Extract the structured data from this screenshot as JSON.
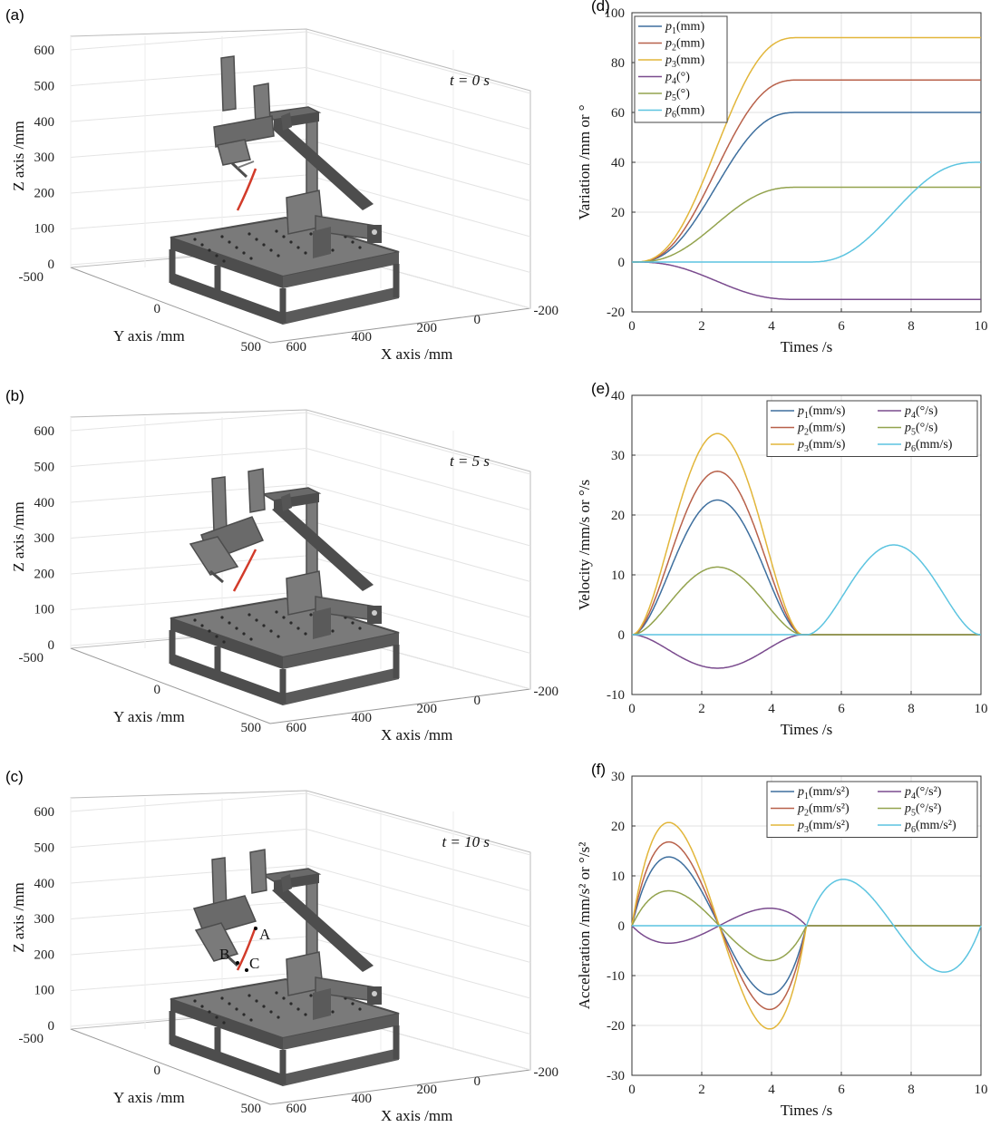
{
  "panels": [
    {
      "label": "(a)",
      "annotation": "t = 0 s"
    },
    {
      "label": "(b)",
      "annotation": "t = 5 s"
    },
    {
      "label": "(c)",
      "annotation": "t = 10 s",
      "points": [
        "A",
        "B",
        "C"
      ]
    }
  ],
  "axes3d": {
    "zlabel": "Z axis /mm",
    "ylabel": "Y axis /mm",
    "xlabel": "X axis /mm",
    "zticks": [
      "0",
      "100",
      "200",
      "300",
      "400",
      "500",
      "600"
    ],
    "yticks": [
      "-500",
      "0",
      "500"
    ],
    "xticks": [
      "600",
      "400",
      "200",
      "0",
      "-200"
    ]
  },
  "colors": {
    "p1": "#3e6f9e",
    "p2": "#b8614a",
    "p3": "#e2b63a",
    "p4": "#7a4b8e",
    "p5": "#93a34e",
    "p6": "#5cc4e0",
    "trajectory": "#d23b2a",
    "robot": "#4d4d4d",
    "robot_light": "#7a7a7a"
  },
  "chart_data": [
    {
      "label": "(d)",
      "type": "line",
      "xlabel": "Times /s",
      "ylabel": "Variation /mm or °",
      "xlim": [
        0,
        10
      ],
      "ylim": [
        -20,
        100
      ],
      "xticks": [
        0,
        2,
        4,
        6,
        8,
        10
      ],
      "yticks": [
        -20,
        0,
        20,
        40,
        60,
        80,
        100
      ],
      "legend_placement": "top-left",
      "legend_columns": 1,
      "grid": true,
      "series": [
        {
          "name": "p",
          "sub": "1",
          "unit": "(mm)",
          "color": "p1",
          "segments": [
            [
              0,
              4.8,
              0,
              60
            ]
          ]
        },
        {
          "name": "p",
          "sub": "2",
          "unit": "(mm)",
          "color": "p2",
          "segments": [
            [
              0,
              4.8,
              0,
              73
            ]
          ]
        },
        {
          "name": "p",
          "sub": "3",
          "unit": "(mm)",
          "color": "p3",
          "segments": [
            [
              0,
              4.8,
              0,
              90
            ]
          ]
        },
        {
          "name": "p",
          "sub": "4",
          "unit": "(°)",
          "color": "p4",
          "segments": [
            [
              0,
              4.8,
              0,
              -15
            ]
          ]
        },
        {
          "name": "p",
          "sub": "5",
          "unit": "(°)",
          "color": "p5",
          "segments": [
            [
              0,
              4.8,
              0,
              30
            ]
          ]
        },
        {
          "name": "p",
          "sub": "6",
          "unit": "(mm)",
          "color": "p6",
          "segments": [
            [
              5,
              10,
              0,
              40
            ]
          ]
        }
      ]
    },
    {
      "label": "(e)",
      "type": "line",
      "xlabel": "Times /s",
      "ylabel": "Velocity /mm/s or °/s",
      "xlim": [
        0,
        10
      ],
      "ylim": [
        -10,
        40
      ],
      "xticks": [
        0,
        2,
        4,
        6,
        8,
        10
      ],
      "yticks": [
        -10,
        0,
        10,
        20,
        30,
        40
      ],
      "legend_placement": "top-right",
      "legend_columns": 2,
      "grid": true,
      "series": [
        {
          "name": "p",
          "sub": "1",
          "unit": "(mm/s)",
          "color": "p1",
          "segments": [
            [
              0,
              4.9,
              0,
              22.5
            ]
          ]
        },
        {
          "name": "p",
          "sub": "2",
          "unit": "(mm/s)",
          "color": "p2",
          "segments": [
            [
              0,
              4.9,
              0,
              27.3
            ]
          ]
        },
        {
          "name": "p",
          "sub": "3",
          "unit": "(mm/s)",
          "color": "p3",
          "segments": [
            [
              0,
              4.9,
              0,
              33.6
            ]
          ]
        },
        {
          "name": "p",
          "sub": "4",
          "unit": "(°/s)",
          "color": "p4",
          "segments": [
            [
              0,
              4.9,
              0,
              -5.6
            ]
          ]
        },
        {
          "name": "p",
          "sub": "5",
          "unit": "(°/s)",
          "color": "p5",
          "segments": [
            [
              0,
              4.9,
              0,
              11.3
            ]
          ]
        },
        {
          "name": "p",
          "sub": "6",
          "unit": "(mm/s)",
          "color": "p6",
          "segments": [
            [
              5,
              10,
              0,
              15
            ]
          ]
        }
      ]
    },
    {
      "label": "(f)",
      "type": "line",
      "xlabel": "Times /s",
      "ylabel": "Acceleration /mm/s² or °/s²",
      "xlim": [
        0,
        10
      ],
      "ylim": [
        -30,
        30
      ],
      "xticks": [
        0,
        2,
        4,
        6,
        8,
        10
      ],
      "yticks": [
        -30,
        -20,
        -10,
        0,
        10,
        20,
        30
      ],
      "legend_placement": "top-right",
      "legend_columns": 2,
      "grid": true,
      "series": [
        {
          "name": "p",
          "sub": "1",
          "unit": "(mm/s²)",
          "color": "p1",
          "segments": [
            [
              0,
              5,
              0,
              13.8
            ]
          ]
        },
        {
          "name": "p",
          "sub": "2",
          "unit": "(mm/s²)",
          "color": "p2",
          "segments": [
            [
              0,
              5,
              0,
              16.8
            ]
          ]
        },
        {
          "name": "p",
          "sub": "3",
          "unit": "(mm/s²)",
          "color": "p3",
          "segments": [
            [
              0,
              5,
              0,
              20.7
            ]
          ]
        },
        {
          "name": "p",
          "sub": "4",
          "unit": "(°/s²)",
          "color": "p4",
          "segments": [
            [
              0,
              5,
              0,
              -3.5
            ]
          ]
        },
        {
          "name": "p",
          "sub": "5",
          "unit": "(°/s²)",
          "color": "p5",
          "segments": [
            [
              0,
              5,
              0,
              7
            ]
          ]
        },
        {
          "name": "p",
          "sub": "6",
          "unit": "(mm/s²)",
          "color": "p6",
          "segments": [
            [
              5,
              10,
              0,
              9.3
            ]
          ]
        }
      ]
    }
  ]
}
